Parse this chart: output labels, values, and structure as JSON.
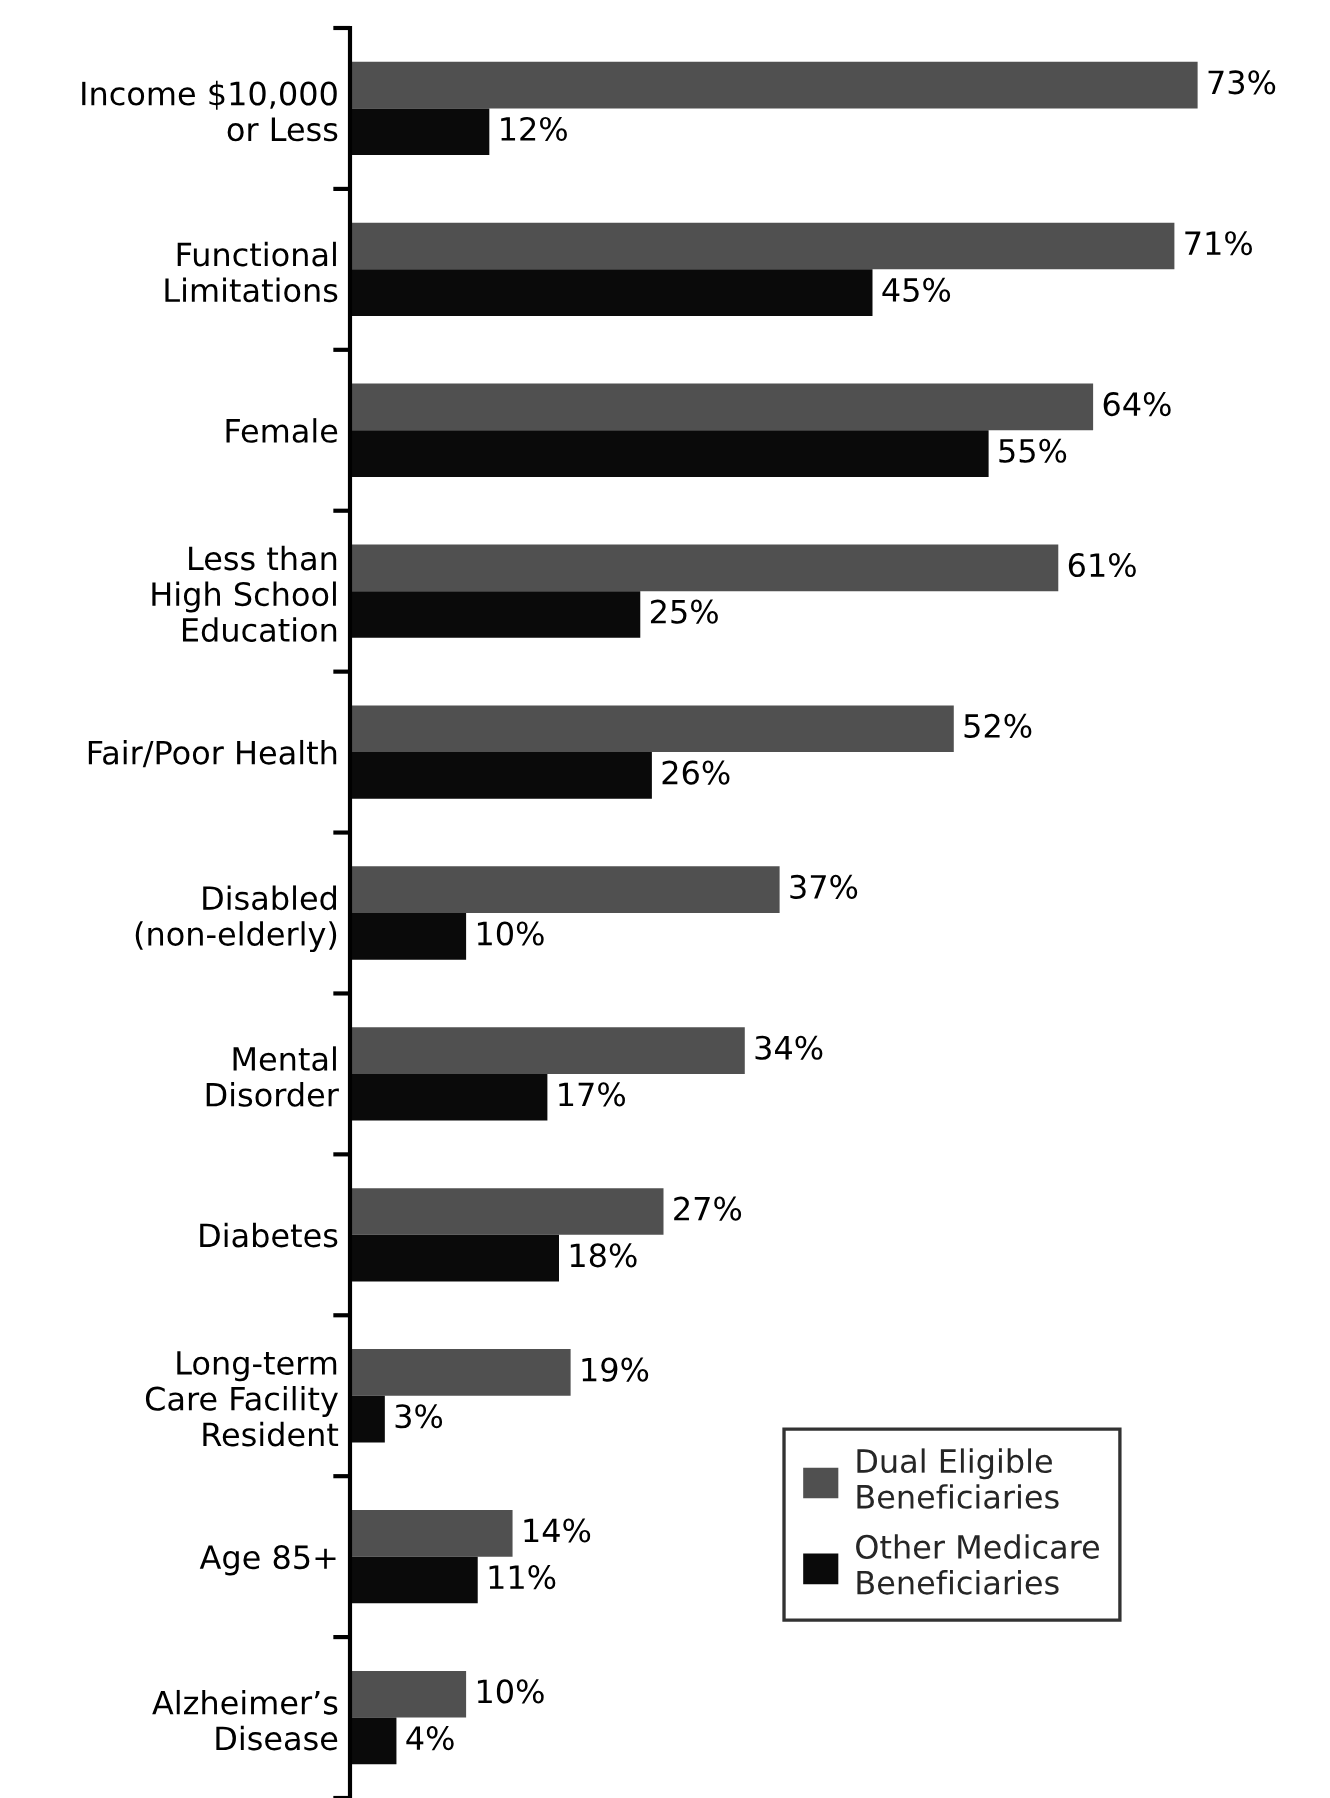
{
  "chart_data": {
    "type": "bar",
    "orientation": "horizontal",
    "categories": [
      "Income $10,000\nor Less",
      "Functional\nLimitations",
      "Female",
      "Less than\nHigh School\nEducation",
      "Fair/Poor Health",
      "Disabled\n(non-elderly)",
      "Mental\nDisorder",
      "Diabetes",
      "Long-term\nCare Facility\nResident",
      "Age 85+",
      "Alzheimer’s\nDisease"
    ],
    "series": [
      {
        "name": "Dual Eligible\nBeneficiaries",
        "color": "#505050",
        "values": [
          73,
          71,
          64,
          61,
          52,
          37,
          34,
          27,
          19,
          14,
          10
        ],
        "value_labels": [
          "73%",
          "71%",
          "64%",
          "61%",
          "52%",
          "37%",
          "34%",
          "27%",
          "19%",
          "14%",
          "10%"
        ]
      },
      {
        "name": "Other Medicare\nBeneficiaries",
        "color": "#0a0a0a",
        "values": [
          12,
          45,
          55,
          25,
          26,
          10,
          17,
          18,
          3,
          11,
          4
        ],
        "value_labels": [
          "12%",
          "45%",
          "55%",
          "25%",
          "26%",
          "10%",
          "17%",
          "18%",
          "3%",
          "11%",
          "4%"
        ]
      }
    ],
    "legend": "bottom right",
    "tick_labels": "y"
  }
}
